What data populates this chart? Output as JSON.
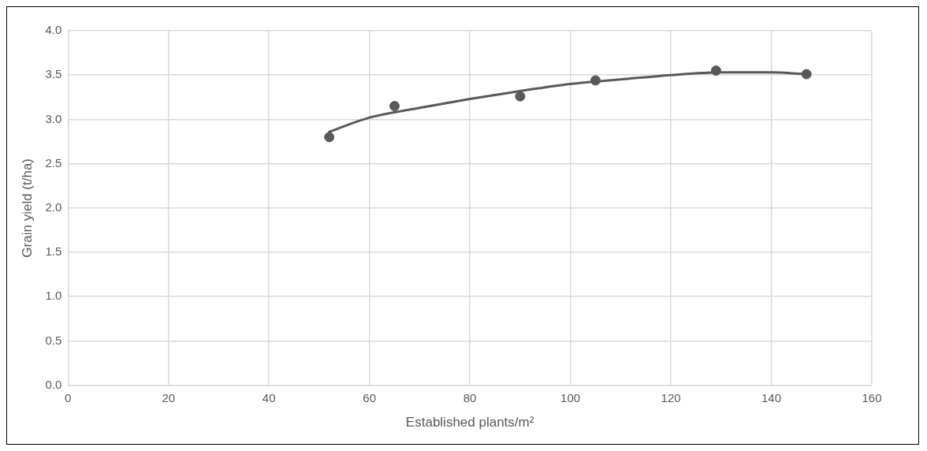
{
  "chart_data": {
    "type": "scatter",
    "xlabel": "Established plants/m²",
    "ylabel": "Grain yield (t/ha)",
    "x": [
      52,
      65,
      90,
      105,
      129,
      147
    ],
    "series": [
      {
        "color": "#595959",
        "marker": "circle",
        "values": [
          2.8,
          3.15,
          3.26,
          3.44,
          3.55,
          3.51
        ]
      },
      {
        "type": "line",
        "color": "#595959",
        "marker": "none",
        "x": [
          52,
          60,
          70,
          80,
          90,
          100,
          110,
          120,
          130,
          140,
          147
        ],
        "values": [
          2.86,
          3.02,
          3.13,
          3.23,
          3.32,
          3.4,
          3.45,
          3.5,
          3.53,
          3.53,
          3.51
        ]
      }
    ],
    "xlim": [
      0,
      160
    ],
    "xticks": [
      0,
      20,
      40,
      60,
      80,
      100,
      120,
      140,
      160
    ],
    "ylim": [
      0,
      4
    ],
    "yticks": [
      {
        "value": 0,
        "label": "0.0"
      },
      {
        "value": 0.5,
        "label": "0.5"
      },
      {
        "value": 1,
        "label": "1.0"
      },
      {
        "value": 1.5,
        "label": "1.5"
      },
      {
        "value": 2,
        "label": "2.0"
      },
      {
        "value": 2.5,
        "label": "2.5"
      },
      {
        "value": 3,
        "label": "3.0"
      },
      {
        "value": 3.5,
        "label": "3.5"
      },
      {
        "value": 4,
        "label": "4.0"
      }
    ],
    "grid": true,
    "legend": false
  }
}
